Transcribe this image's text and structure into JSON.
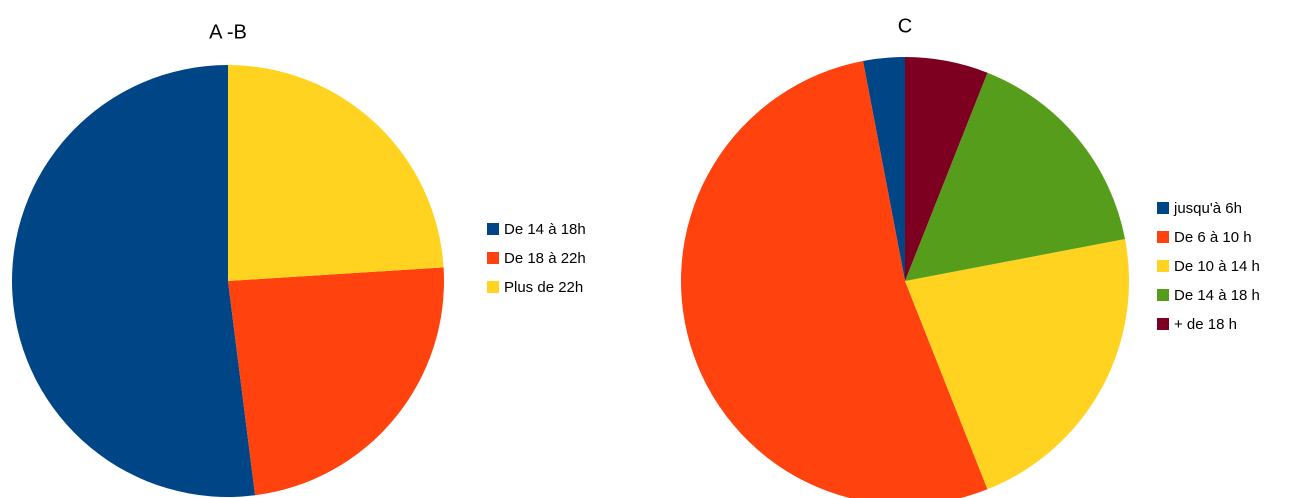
{
  "chart_data": [
    {
      "type": "pie",
      "title": "A -B",
      "categories": [
        "De 14 à 18h",
        "De 18 à 22h",
        "Plus de 22h"
      ],
      "values": [
        52,
        24,
        24
      ],
      "colors": [
        "#004586",
        "#ff420e",
        "#ffd320"
      ],
      "legend": "right"
    },
    {
      "type": "pie",
      "title": "C",
      "categories": [
        "jusqu'à 6h",
        "De 6 à 10 h",
        "De 10 à 14 h",
        "De 14 à 18 h",
        "+ de 18 h"
      ],
      "values": [
        3,
        53,
        22,
        16,
        6
      ],
      "colors": [
        "#004586",
        "#ff420e",
        "#ffd320",
        "#579d1c",
        "#7e0021"
      ],
      "legend": "right"
    }
  ]
}
